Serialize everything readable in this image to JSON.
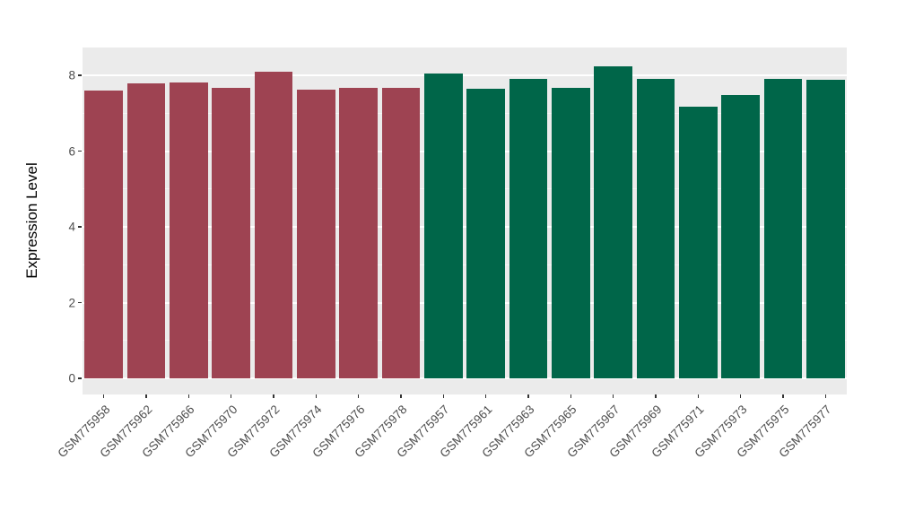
{
  "chart_data": {
    "type": "bar",
    "title": "",
    "xlabel": "",
    "ylabel": "Expression Level",
    "ylim": [
      0,
      8.74
    ],
    "yticks": [
      0,
      2,
      4,
      6,
      8
    ],
    "yticks_minor": [
      1,
      3,
      5,
      7
    ],
    "grid": "on",
    "legend": "none",
    "categories": [
      "GSM775958",
      "GSM775962",
      "GSM775966",
      "GSM775970",
      "GSM775972",
      "GSM775974",
      "GSM775976",
      "GSM775978",
      "GSM775957",
      "GSM775961",
      "GSM775963",
      "GSM775965",
      "GSM775967",
      "GSM775969",
      "GSM775971",
      "GSM775973",
      "GSM775975",
      "GSM775977"
    ],
    "values": [
      7.6,
      7.78,
      7.81,
      7.67,
      8.09,
      7.62,
      7.68,
      7.67,
      8.05,
      7.65,
      7.91,
      7.67,
      8.24,
      7.91,
      7.17,
      7.48,
      7.91,
      7.89
    ],
    "bar_groups": [
      "maroon",
      "maroon",
      "maroon",
      "maroon",
      "maroon",
      "maroon",
      "maroon",
      "maroon",
      "green",
      "green",
      "green",
      "green",
      "green",
      "green",
      "green",
      "green",
      "green",
      "green"
    ],
    "colors": {
      "maroon": "#9E4352",
      "green": "#006649",
      "panel_bg": "#EBEBEB",
      "gridline": "#FFFFFF",
      "tick_text": "#4D4D4D",
      "axis_title_text": "#000000"
    }
  }
}
